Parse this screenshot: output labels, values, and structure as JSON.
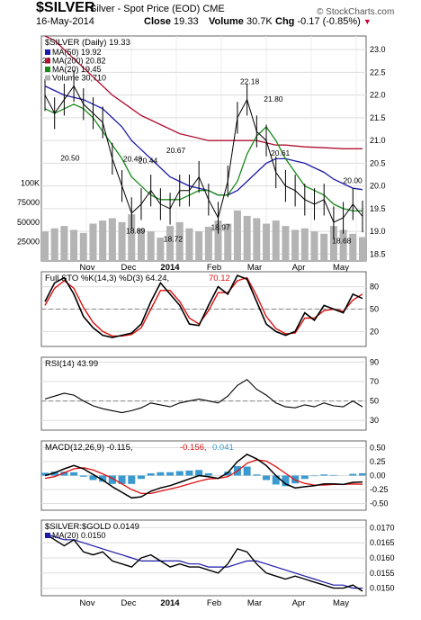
{
  "header": {
    "symbol": "$SILVER",
    "description": "Silver - Spot Price (EOD)",
    "exchange": "CME",
    "date": "16-May-2014",
    "close_label": "Close",
    "close_value": "19.33",
    "volume_label": "Volume",
    "volume_value": "30.7K",
    "chg_label": "Chg",
    "chg_value": "-0.17 (-0.85%)",
    "credit": "© StockCharts.com"
  },
  "colors": {
    "price": "#000000",
    "ma50": "#1a1aa6",
    "ma200": "#b01030",
    "ma20": "#1a8a1a",
    "volume": "#b4b4b4",
    "sto_d": "#dd1111",
    "macd_hist": "#3a9ad0",
    "accent_red": "#cc0033"
  },
  "chart_data": [
    {
      "type": "line",
      "title": "$SILVER (Daily) 19.33",
      "legend": [
        {
          "name": "MA(50)",
          "value": "19.92",
          "color": "#1a1aa6"
        },
        {
          "name": "MA(200)",
          "value": "20.82",
          "color": "#b01030"
        },
        {
          "name": "MA(20)",
          "value": "19.45",
          "color": "#1a8a1a"
        },
        {
          "name": "Volume",
          "value": "30,710",
          "color": "#b4b4b4"
        }
      ],
      "legend_placement": "top-left",
      "ylim": [
        18.35,
        23.3
      ],
      "yticks": [
        "23.0",
        "22.5",
        "22.0",
        "21.5",
        "21.0",
        "20.5",
        "20.0",
        "19.5",
        "19.0",
        "18.5"
      ],
      "vol_yticks": [
        "100K",
        "75000",
        "50000",
        "25000"
      ],
      "x_labels": [
        "Nov",
        "Dec",
        "2014",
        "Feb",
        "Mar",
        "Apr",
        "May"
      ],
      "annotations": [
        {
          "text": "20.50",
          "date": "2013-10-18",
          "value": 20.5
        },
        {
          "text": "20.48",
          "date": "2013-12-02",
          "value": 20.48
        },
        {
          "text": "20.44",
          "date": "2013-12-13",
          "value": 20.44
        },
        {
          "text": "20.67",
          "date": "2014-01-02",
          "value": 20.67
        },
        {
          "text": "18.89",
          "date": "2013-12-04",
          "value": 18.89
        },
        {
          "text": "18.72",
          "date": "2013-12-31",
          "value": 18.72
        },
        {
          "text": "18.97",
          "date": "2014-02-03",
          "value": 18.97
        },
        {
          "text": "22.18",
          "date": "2014-02-24",
          "value": 22.18
        },
        {
          "text": "21.80",
          "date": "2014-03-13",
          "value": 21.8
        },
        {
          "text": "20.61",
          "date": "2014-03-18",
          "value": 20.61
        },
        {
          "text": "20.00",
          "date": "2014-05-09",
          "value": 20.0
        },
        {
          "text": "18.68",
          "date": "2014-05-01",
          "value": 18.68
        },
        {
          "text": "22",
          "date": "2013-10-01",
          "value": 22.65
        }
      ],
      "series": [
        {
          "name": "Price",
          "x": [
            "2013-09-30",
            "2013-10-07",
            "2013-10-14",
            "2013-10-21",
            "2013-10-28",
            "2013-11-04",
            "2013-11-11",
            "2013-11-18",
            "2013-11-25",
            "2013-12-02",
            "2013-12-09",
            "2013-12-16",
            "2013-12-23",
            "2013-12-30",
            "2014-01-06",
            "2014-01-13",
            "2014-01-20",
            "2014-01-27",
            "2014-02-03",
            "2014-02-10",
            "2014-02-17",
            "2014-02-24",
            "2014-03-03",
            "2014-03-10",
            "2014-03-17",
            "2014-03-24",
            "2014-03-31",
            "2014-04-07",
            "2014-04-14",
            "2014-04-21",
            "2014-04-28",
            "2014-05-05",
            "2014-05-12",
            "2014-05-16"
          ],
          "values": [
            22.0,
            21.6,
            21.9,
            22.2,
            21.8,
            21.6,
            21.4,
            20.6,
            20.0,
            19.4,
            19.6,
            19.9,
            19.6,
            19.5,
            19.9,
            19.9,
            20.2,
            19.7,
            19.3,
            20.1,
            21.5,
            21.9,
            21.2,
            21.0,
            20.3,
            20.0,
            19.9,
            19.7,
            19.6,
            19.7,
            19.2,
            19.3,
            19.6,
            19.33
          ]
        },
        {
          "name": "MA(50)",
          "values": [
            22.2,
            22.1,
            22.0,
            21.95,
            21.9,
            21.8,
            21.7,
            21.5,
            21.3,
            21.0,
            20.8,
            20.6,
            20.4,
            20.2,
            20.1,
            20.0,
            19.95,
            19.9,
            19.8,
            19.8,
            19.9,
            20.1,
            20.3,
            20.5,
            20.6,
            20.6,
            20.55,
            20.5,
            20.4,
            20.3,
            20.15,
            20.05,
            19.95,
            19.92
          ]
        },
        {
          "name": "MA(200)",
          "values": [
            23.3,
            23.2,
            23.0,
            22.8,
            22.6,
            22.4,
            22.2,
            22.0,
            21.85,
            21.7,
            21.55,
            21.45,
            21.35,
            21.25,
            21.15,
            21.1,
            21.05,
            21.0,
            21.0,
            21.0,
            21.0,
            21.0,
            21.0,
            20.95,
            20.9,
            20.9,
            20.88,
            20.86,
            20.85,
            20.84,
            20.83,
            20.82,
            20.82,
            20.82
          ]
        },
        {
          "name": "MA(20)",
          "values": [
            21.7,
            21.6,
            21.7,
            21.8,
            21.7,
            21.5,
            21.2,
            20.9,
            20.6,
            20.2,
            20.0,
            19.8,
            19.7,
            19.7,
            19.7,
            19.8,
            19.9,
            19.9,
            19.8,
            19.8,
            20.1,
            20.7,
            21.1,
            21.3,
            21.0,
            20.6,
            20.3,
            20.0,
            19.9,
            19.8,
            19.6,
            19.5,
            19.45,
            19.45
          ]
        },
        {
          "name": "Volume",
          "values": [
            38000,
            42000,
            45000,
            40000,
            36000,
            48000,
            52000,
            55000,
            50000,
            60000,
            42000,
            38000,
            30000,
            45000,
            50000,
            42000,
            38000,
            44000,
            52000,
            48000,
            65000,
            58000,
            55000,
            48000,
            52000,
            45000,
            40000,
            42000,
            38000,
            35000,
            45000,
            40000,
            35000,
            30710
          ]
        }
      ]
    },
    {
      "type": "line",
      "title": "Full STO %K(14,3) %D(3) 64.24, 70.12",
      "label_main": "Full STO %K(14,3) %D(3) 64.24,",
      "label_red": "70.12",
      "ylim": [
        0,
        100
      ],
      "yticks": [
        "80",
        "50",
        "20"
      ],
      "series": [
        {
          "name": "%K",
          "values": [
            60,
            85,
            92,
            70,
            40,
            25,
            15,
            12,
            15,
            18,
            30,
            60,
            85,
            70,
            55,
            30,
            28,
            55,
            80,
            70,
            95,
            90,
            60,
            30,
            20,
            15,
            20,
            45,
            35,
            55,
            50,
            45,
            70,
            64.24
          ]
        },
        {
          "name": "%D",
          "values": [
            55,
            78,
            88,
            78,
            52,
            32,
            20,
            14,
            14,
            16,
            25,
            50,
            75,
            75,
            60,
            38,
            30,
            48,
            72,
            72,
            88,
            92,
            68,
            40,
            24,
            17,
            18,
            38,
            38,
            48,
            50,
            47,
            62,
            70.12
          ]
        }
      ]
    },
    {
      "type": "line",
      "title": "RSI(14) 43.99",
      "ylim": [
        20,
        95
      ],
      "yticks": [
        "90",
        "70",
        "50",
        "30"
      ],
      "series": [
        {
          "name": "RSI(14)",
          "values": [
            52,
            55,
            58,
            56,
            50,
            45,
            42,
            40,
            38,
            40,
            43,
            48,
            46,
            44,
            48,
            50,
            52,
            50,
            48,
            55,
            66,
            72,
            62,
            56,
            48,
            44,
            43,
            46,
            44,
            48,
            45,
            44,
            50,
            43.99
          ]
        }
      ]
    },
    {
      "type": "line",
      "title": "MACD(12,26,9) -0.115, -0.156, 0.041",
      "label_main": "MACD(12,26,9) -0.115,",
      "label_red": "-0.156,",
      "label_blue": "0.041",
      "ylim": [
        -0.62,
        0.62
      ],
      "yticks": [
        "0.50",
        "0.25",
        "0.00",
        "-0.25",
        "-0.50"
      ],
      "series": [
        {
          "name": "MACD",
          "values": [
            0.0,
            0.05,
            0.12,
            0.18,
            0.12,
            0.02,
            -0.08,
            -0.2,
            -0.3,
            -0.4,
            -0.38,
            -0.28,
            -0.22,
            -0.18,
            -0.12,
            -0.06,
            0.0,
            -0.02,
            -0.05,
            0.05,
            0.25,
            0.38,
            0.3,
            0.18,
            0.0,
            -0.15,
            -0.22,
            -0.2,
            -0.18,
            -0.15,
            -0.15,
            -0.16,
            -0.12,
            -0.115
          ]
        },
        {
          "name": "Signal",
          "values": [
            -0.05,
            -0.02,
            0.05,
            0.12,
            0.14,
            0.1,
            0.03,
            -0.05,
            -0.15,
            -0.25,
            -0.32,
            -0.32,
            -0.28,
            -0.24,
            -0.2,
            -0.15,
            -0.1,
            -0.06,
            -0.05,
            -0.02,
            0.08,
            0.22,
            0.28,
            0.26,
            0.16,
            0.04,
            -0.08,
            -0.14,
            -0.17,
            -0.17,
            -0.16,
            -0.16,
            -0.15,
            -0.156
          ]
        },
        {
          "name": "Histogram",
          "values": [
            0.05,
            0.07,
            0.07,
            0.06,
            -0.02,
            -0.08,
            -0.11,
            -0.15,
            -0.15,
            -0.15,
            -0.06,
            0.04,
            0.06,
            0.06,
            0.08,
            0.09,
            0.1,
            0.04,
            0.0,
            0.07,
            0.17,
            0.16,
            0.02,
            -0.08,
            -0.16,
            -0.19,
            -0.14,
            -0.06,
            -0.01,
            0.02,
            0.01,
            0.0,
            0.03,
            0.041
          ]
        }
      ]
    },
    {
      "type": "line",
      "title": "$SILVER:$GOLD 0.0149",
      "legend": [
        {
          "name": "MA(20)",
          "value": "0.0150",
          "color": "#1a1aa6"
        }
      ],
      "ylim": [
        0.01475,
        0.01725
      ],
      "yticks": [
        "0.0170",
        "0.0165",
        "0.0160",
        "0.0155",
        "0.0150"
      ],
      "series": [
        {
          "name": "$SILVER:$GOLD",
          "values": [
            0.0168,
            0.0166,
            0.0164,
            0.0166,
            0.0162,
            0.0161,
            0.0162,
            0.0159,
            0.0158,
            0.0157,
            0.016,
            0.0161,
            0.0159,
            0.0157,
            0.0158,
            0.0157,
            0.0157,
            0.0156,
            0.0155,
            0.0158,
            0.0163,
            0.0162,
            0.0158,
            0.0155,
            0.0154,
            0.0153,
            0.0154,
            0.0153,
            0.0152,
            0.0151,
            0.015,
            0.015,
            0.0151,
            0.0149
          ]
        },
        {
          "name": "MA(20)",
          "values": [
            0.0168,
            0.0167,
            0.0166,
            0.0166,
            0.0165,
            0.0164,
            0.0163,
            0.0162,
            0.0161,
            0.016,
            0.0159,
            0.0159,
            0.0159,
            0.0159,
            0.0159,
            0.0158,
            0.0158,
            0.0157,
            0.0157,
            0.0157,
            0.0158,
            0.0159,
            0.0159,
            0.0158,
            0.0157,
            0.0156,
            0.0155,
            0.0154,
            0.0153,
            0.0152,
            0.0151,
            0.0151,
            0.015,
            0.015
          ]
        }
      ]
    }
  ]
}
